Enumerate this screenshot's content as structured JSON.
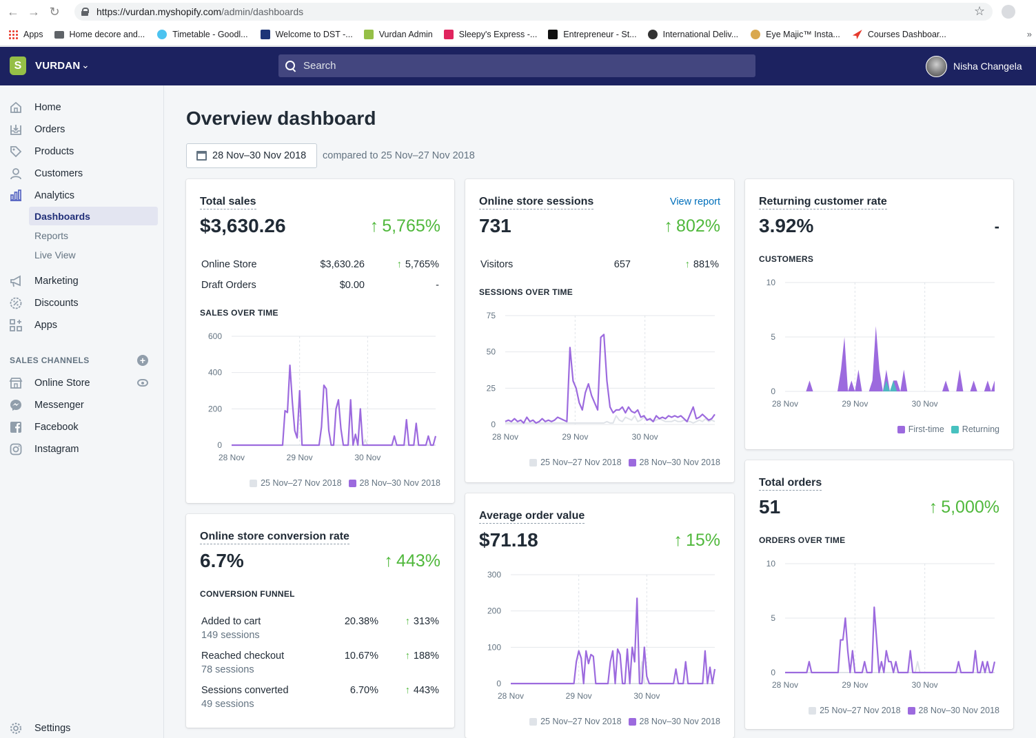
{
  "browser": {
    "url_host": "https://vurdan.myshopify.com",
    "url_path": "/admin/dashboards",
    "bookmarks": [
      "Apps",
      "Home decore and...",
      "Timetable - Goodl...",
      "Welcome to DST -...",
      "Vurdan Admin",
      "Sleepy's Express -...",
      "Entrepreneur - St...",
      "International Deliv...",
      "Eye Majic™ Insta...",
      "Courses Dashboar..."
    ]
  },
  "topbar": {
    "store_name": "VURDAN",
    "search_placeholder": "Search",
    "user_name": "Nisha Changela",
    "brand_color": "#1c2260"
  },
  "sidebar": {
    "items": [
      {
        "label": "Home",
        "icon": "home-icon"
      },
      {
        "label": "Orders",
        "icon": "orders-icon"
      },
      {
        "label": "Products",
        "icon": "tag-icon"
      },
      {
        "label": "Customers",
        "icon": "person-icon"
      },
      {
        "label": "Analytics",
        "icon": "bar-chart-icon"
      },
      {
        "label": "Marketing",
        "icon": "megaphone-icon"
      },
      {
        "label": "Discounts",
        "icon": "discount-icon"
      },
      {
        "label": "Apps",
        "icon": "apps-icon"
      }
    ],
    "analytics_sub": [
      "Dashboards",
      "Reports",
      "Live View"
    ],
    "sales_channels_title": "SALES CHANNELS",
    "channels": [
      "Online Store",
      "Messenger",
      "Facebook",
      "Instagram"
    ],
    "settings_label": "Settings"
  },
  "page": {
    "title": "Overview dashboard",
    "date_range": "28 Nov–30 Nov 2018",
    "compare_text": "compared to 25 Nov–27 Nov 2018"
  },
  "legend": {
    "previous": "25 Nov–27 Nov 2018",
    "current": "28 Nov–30 Nov 2018",
    "first_time": "First-time",
    "returning": "Returning"
  },
  "colors": {
    "current": "#9c6ade",
    "previous": "#dfe3e8",
    "returning": "#47c1bf",
    "positive": "#50b83c"
  },
  "cards": {
    "total_sales": {
      "title": "Total sales",
      "value": "$3,630.26",
      "change": "5,765%",
      "rows": [
        {
          "label": "Online Store",
          "value": "$3,630.26",
          "change": "5,765%"
        },
        {
          "label": "Draft Orders",
          "value": "$0.00",
          "change": "-"
        }
      ],
      "section": "SALES OVER TIME"
    },
    "sessions": {
      "title": "Online store sessions",
      "link": "View report",
      "value": "731",
      "change": "802%",
      "rows": [
        {
          "label": "Visitors",
          "value": "657",
          "change": "881%"
        }
      ],
      "section": "SESSIONS OVER TIME"
    },
    "returning_rate": {
      "title": "Returning customer rate",
      "value": "3.92%",
      "change": "-",
      "section": "CUSTOMERS"
    },
    "conversion": {
      "title": "Online store conversion rate",
      "value": "6.7%",
      "change": "443%",
      "section": "CONVERSION FUNNEL",
      "rows": [
        {
          "label": "Added to cart",
          "sub": "149 sessions",
          "value": "20.38%",
          "change": "313%"
        },
        {
          "label": "Reached checkout",
          "sub": "78 sessions",
          "value": "10.67%",
          "change": "188%"
        },
        {
          "label": "Sessions converted",
          "sub": "49 sessions",
          "value": "6.70%",
          "change": "443%"
        }
      ]
    },
    "aov": {
      "title": "Average order value",
      "value": "$71.18",
      "change": "15%"
    },
    "orders": {
      "title": "Total orders",
      "value": "51",
      "change": "5,000%",
      "section": "ORDERS OVER TIME"
    }
  },
  "chart_data": [
    {
      "id": "sales",
      "type": "line",
      "ylim": [
        0,
        600
      ],
      "yticks": [
        0,
        200,
        400,
        600
      ],
      "xticks": [
        "28 Nov",
        "29 Nov",
        "30 Nov"
      ],
      "series": [
        {
          "name": "28 Nov–30 Nov 2018",
          "values": [
            0,
            0,
            0,
            0,
            0,
            0,
            0,
            0,
            0,
            0,
            0,
            0,
            0,
            0,
            0,
            0,
            0,
            0,
            0,
            0,
            0,
            0,
            190,
            180,
            440,
            240,
            80,
            40,
            300,
            0,
            0,
            0,
            0,
            0,
            0,
            0,
            0,
            100,
            330,
            310,
            80,
            0,
            0,
            200,
            250,
            90,
            0,
            0,
            0,
            250,
            0,
            60,
            0,
            200,
            0,
            0,
            0,
            0,
            0,
            0,
            0,
            0,
            0,
            0,
            0,
            0,
            0,
            50,
            0,
            0,
            0,
            0,
            140,
            0,
            0,
            0,
            120,
            0,
            0,
            0,
            0,
            50,
            0,
            0,
            50
          ]
        },
        {
          "name": "25 Nov–27 Nov 2018",
          "values": [
            0,
            0,
            0,
            0,
            0,
            0,
            0,
            0,
            0,
            0,
            0,
            0,
            0,
            0,
            0,
            0,
            0,
            0,
            0,
            0,
            0,
            0,
            0,
            0,
            0,
            0,
            0,
            0,
            0,
            0,
            0,
            0,
            0,
            0,
            0,
            0,
            0,
            0,
            0,
            0,
            0,
            0,
            0,
            0,
            0,
            0,
            0,
            0,
            0,
            0,
            0,
            0,
            0,
            0,
            0,
            30,
            0,
            0,
            0,
            0,
            0,
            0,
            0,
            0,
            0,
            0,
            0,
            0,
            0,
            0,
            0,
            0,
            0,
            0,
            0,
            0,
            0,
            0,
            0,
            0,
            0,
            0,
            0,
            0,
            0
          ]
        }
      ]
    },
    {
      "id": "sessions",
      "type": "line",
      "ylim": [
        0,
        75
      ],
      "yticks": [
        0,
        25,
        50,
        75
      ],
      "xticks": [
        "28 Nov",
        "29 Nov",
        "30 Nov"
      ],
      "series": [
        {
          "name": "28 Nov–30 Nov 2018",
          "values": [
            2,
            3,
            2,
            4,
            2,
            3,
            1,
            5,
            2,
            3,
            1,
            2,
            4,
            2,
            3,
            2,
            3,
            5,
            4,
            3,
            2,
            53,
            30,
            25,
            15,
            10,
            22,
            28,
            20,
            15,
            10,
            60,
            62,
            30,
            12,
            8,
            10,
            10,
            12,
            8,
            12,
            9,
            8,
            10,
            5,
            6,
            3,
            4,
            2,
            6,
            4,
            5,
            4,
            6,
            5,
            6,
            5,
            6,
            4,
            2,
            7,
            12,
            4,
            5,
            7,
            5,
            3,
            4,
            7
          ]
        },
        {
          "name": "25 Nov–27 Nov 2018",
          "values": [
            1,
            1,
            1,
            1,
            1,
            1,
            1,
            1,
            1,
            1,
            1,
            1,
            1,
            1,
            1,
            1,
            1,
            1,
            1,
            1,
            1,
            1,
            1,
            1,
            1,
            1,
            1,
            1,
            1,
            1,
            1,
            1,
            1,
            2,
            1,
            1,
            6,
            3,
            2,
            5,
            4,
            3,
            6,
            2,
            3,
            5,
            4,
            3,
            2,
            3,
            4,
            3,
            2,
            2,
            2,
            3,
            2,
            2,
            3,
            2,
            2,
            1,
            2,
            3,
            2,
            4,
            2,
            3,
            2
          ]
        }
      ]
    },
    {
      "id": "customers",
      "type": "area",
      "ylim": [
        0,
        10
      ],
      "yticks": [
        0,
        5,
        10
      ],
      "xticks": [
        "28 Nov",
        "29 Nov",
        "30 Nov"
      ],
      "series": [
        {
          "name": "First-time",
          "values": [
            0,
            0,
            0,
            0,
            0,
            0,
            0,
            1,
            0,
            0,
            0,
            0,
            0,
            0,
            0,
            0,
            2,
            5,
            0,
            1,
            0,
            2,
            0,
            0,
            0,
            1,
            6,
            2,
            0,
            2,
            0,
            1,
            1,
            0,
            2,
            0,
            0,
            0,
            0,
            0,
            0,
            0,
            0,
            0,
            0,
            0,
            1,
            0,
            0,
            0,
            2,
            0,
            0,
            0,
            1,
            0,
            0,
            0,
            1,
            0,
            1
          ]
        },
        {
          "name": "Returning",
          "values": [
            0,
            0,
            0,
            0,
            0,
            0,
            0,
            0,
            0,
            0,
            0,
            0,
            0,
            0,
            0,
            0,
            0,
            0,
            0,
            0,
            0,
            0,
            0,
            0,
            0,
            0,
            0,
            0,
            0,
            1,
            0,
            1,
            0,
            0,
            0,
            0,
            0,
            0,
            0,
            0,
            0,
            0,
            0,
            0,
            0,
            0,
            0,
            0,
            0,
            0,
            0,
            0,
            0,
            0,
            0,
            0,
            0,
            0,
            0,
            0,
            0
          ]
        }
      ]
    },
    {
      "id": "aov",
      "type": "line",
      "ylim": [
        0,
        300
      ],
      "yticks": [
        0,
        100,
        200,
        300
      ],
      "xticks": [
        "28 Nov",
        "29 Nov",
        "30 Nov"
      ],
      "series": [
        {
          "name": "28 Nov–30 Nov 2018",
          "values": [
            0,
            0,
            0,
            0,
            0,
            0,
            0,
            0,
            0,
            0,
            0,
            0,
            0,
            0,
            0,
            0,
            0,
            0,
            0,
            0,
            0,
            0,
            0,
            0,
            0,
            0,
            0,
            60,
            90,
            70,
            0,
            90,
            55,
            80,
            75,
            0,
            0,
            0,
            0,
            0,
            0,
            60,
            90,
            0,
            95,
            80,
            0,
            0,
            95,
            0,
            100,
            60,
            235,
            0,
            0,
            100,
            20,
            0,
            0,
            0,
            0,
            0,
            0,
            0,
            0,
            0,
            0,
            0,
            40,
            0,
            0,
            0,
            60,
            0,
            0,
            0,
            0,
            0,
            0,
            0,
            90,
            0,
            45,
            0,
            40
          ]
        },
        {
          "name": "25 Nov–27 Nov 2018",
          "values": [
            0,
            0,
            0,
            0,
            0,
            0,
            0,
            0,
            0,
            0,
            0,
            0,
            0,
            0,
            0,
            0,
            0,
            0,
            0,
            0,
            0,
            0,
            0,
            0,
            0,
            0,
            0,
            0,
            0,
            0,
            0,
            0,
            0,
            0,
            0,
            0,
            0,
            0,
            0,
            0,
            0,
            0,
            0,
            0,
            0,
            0,
            0,
            0,
            0,
            0,
            0,
            0,
            0,
            0,
            60,
            0,
            0,
            0,
            0,
            0,
            0,
            0,
            0,
            0,
            0,
            0,
            0,
            0,
            0,
            0,
            0,
            0,
            0,
            0,
            0,
            0,
            0,
            0,
            0,
            0,
            0,
            0,
            0,
            0,
            0
          ]
        }
      ]
    },
    {
      "id": "orders",
      "type": "line",
      "ylim": [
        0,
        10
      ],
      "yticks": [
        0,
        5,
        10
      ],
      "xticks": [
        "28 Nov",
        "29 Nov",
        "30 Nov"
      ],
      "series": [
        {
          "name": "28 Nov–30 Nov 2018",
          "values": [
            0,
            0,
            0,
            0,
            0,
            0,
            0,
            0,
            0,
            0,
            1,
            0,
            0,
            0,
            0,
            0,
            0,
            0,
            0,
            0,
            0,
            0,
            0,
            3,
            3,
            5,
            2,
            0,
            2,
            0,
            0,
            0,
            0,
            1,
            0,
            0,
            0,
            6,
            3,
            0,
            1,
            0,
            2,
            1,
            1,
            0,
            1,
            0,
            0,
            0,
            0,
            0,
            2,
            0,
            0,
            0,
            0,
            0,
            0,
            0,
            0,
            0,
            0,
            0,
            0,
            0,
            0,
            0,
            0,
            0,
            0,
            0,
            1,
            0,
            0,
            0,
            0,
            0,
            0,
            2,
            0,
            0,
            1,
            0,
            1,
            0,
            0,
            1
          ]
        },
        {
          "name": "25 Nov–27 Nov 2018",
          "values": [
            0,
            0,
            0,
            0,
            0,
            0,
            0,
            0,
            0,
            0,
            0,
            0,
            0,
            0,
            0,
            0,
            0,
            0,
            0,
            0,
            0,
            0,
            0,
            0,
            0,
            0,
            0,
            0,
            0,
            0,
            0,
            0,
            0,
            0,
            0,
            0,
            0,
            0,
            0,
            0,
            0,
            0,
            0,
            0,
            0,
            0,
            0,
            0,
            0,
            0,
            0,
            0,
            0,
            0,
            0,
            1,
            0,
            0,
            0,
            0,
            0,
            0,
            0,
            0,
            0,
            0,
            0,
            0,
            0,
            0,
            0,
            0,
            0,
            0,
            0,
            0,
            0,
            0,
            0,
            0,
            0,
            0,
            0,
            0,
            0,
            0,
            0,
            0
          ]
        }
      ]
    }
  ]
}
